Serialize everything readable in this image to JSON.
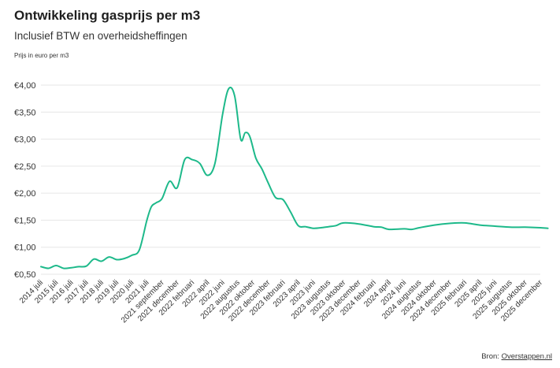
{
  "header": {
    "title": "Ontwikkeling gasprijs per m3",
    "subtitle": "Inclusief BTW en overheidsheffingen",
    "unit_label": "Prijs in euro per m3"
  },
  "footer": {
    "source_prefix": "Bron:",
    "source_link": "Overstappen.nl"
  },
  "colors": {
    "line": "#1db98a",
    "grid": "#e6e6e6",
    "text": "#333333"
  },
  "chart_data": {
    "type": "line",
    "title": "Ontwikkeling gasprijs per m3",
    "subtitle": "Inclusief BTW en overheidsheffingen",
    "ylabel": "Prijs in euro per m3",
    "ylim": [
      0.5,
      4.0
    ],
    "yticks": [
      0.5,
      1.0,
      1.5,
      2.0,
      2.5,
      3.0,
      3.5,
      4.0
    ],
    "ytick_labels": [
      "€0,50",
      "€1,00",
      "€1,50",
      "€2,00",
      "€2,50",
      "€3,00",
      "€3,50",
      "€4,00"
    ],
    "grid": true,
    "xtick_labels": [
      "2014 juli",
      "2015 juli",
      "2016 juli",
      "2017 juli",
      "2018 juli",
      "2019 juli",
      "2020 juli",
      "2021 juli",
      "2021 september",
      "2021 december",
      "2022 februari",
      "2022 april",
      "2022 juni",
      "2022 augustus",
      "2022 oktober",
      "2022 december",
      "2023 februari",
      "2023 april",
      "2023 juni",
      "2023 augustus",
      "2023 oktober",
      "2023 december",
      "2024 februari",
      "2024 april",
      "2024 juni",
      "2024 augustus",
      "2024 oktober",
      "2024 december",
      "2025 februari",
      "2025 april",
      "2025 juni",
      "2025 augustus",
      "2025 oktober",
      "2025 december"
    ],
    "x": [
      0,
      0.5,
      1,
      1.5,
      2,
      2.5,
      3,
      3.5,
      4,
      4.5,
      5,
      5.5,
      6,
      6.5,
      7,
      7.3,
      7.6,
      8,
      8.5,
      9,
      9.5,
      10,
      10.5,
      11,
      11.5,
      12,
      12.4,
      12.8,
      13.2,
      13.5,
      13.8,
      14.2,
      14.6,
      15,
      15.5,
      16,
      16.5,
      17,
      17.5,
      18,
      18.5,
      19,
      19.5,
      20,
      21,
      22,
      22.5,
      23,
      24,
      24.5,
      25,
      26,
      27,
      28,
      29,
      30,
      31,
      32,
      33,
      33.5
    ],
    "values": [
      0.64,
      0.61,
      0.66,
      0.61,
      0.62,
      0.64,
      0.65,
      0.78,
      0.74,
      0.82,
      0.77,
      0.79,
      0.85,
      0.95,
      1.5,
      1.75,
      1.82,
      1.9,
      2.22,
      2.1,
      2.62,
      2.62,
      2.55,
      2.33,
      2.55,
      3.45,
      3.93,
      3.8,
      3.0,
      3.12,
      3.05,
      2.65,
      2.45,
      2.2,
      1.92,
      1.88,
      1.65,
      1.4,
      1.38,
      1.35,
      1.36,
      1.38,
      1.4,
      1.45,
      1.43,
      1.38,
      1.37,
      1.33,
      1.34,
      1.33,
      1.36,
      1.41,
      1.44,
      1.45,
      1.41,
      1.39,
      1.37,
      1.37,
      1.36,
      1.35
    ]
  }
}
